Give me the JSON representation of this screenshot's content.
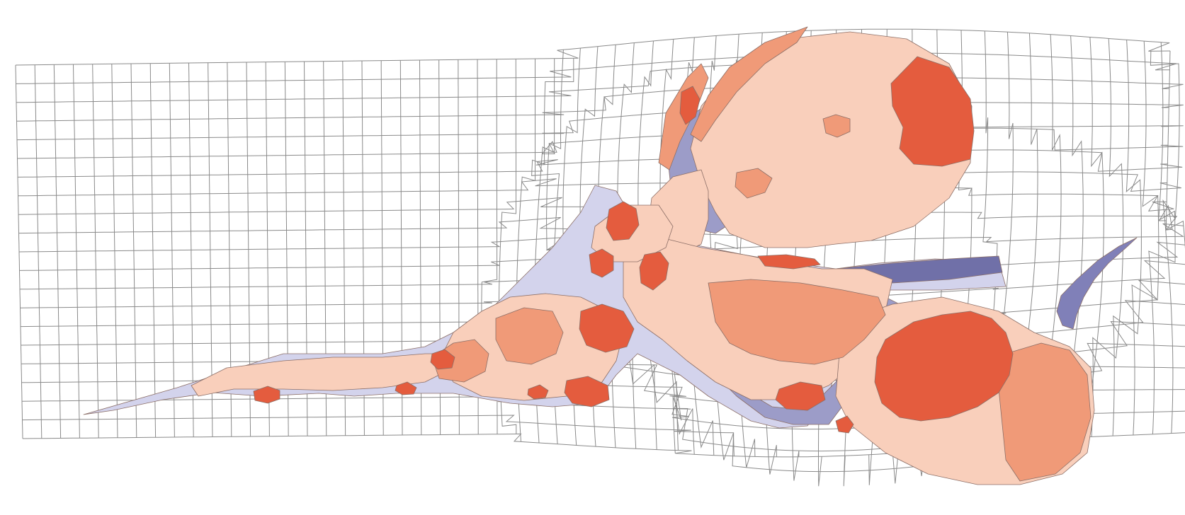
{
  "map": {
    "type": "cartogram",
    "grid": {
      "columns": 60,
      "rows": 20,
      "color": "#8a8a8a",
      "visible": true
    },
    "colors": {
      "background": "#ffffff",
      "lightest": "#f9cfbb",
      "medium": "#f09a78",
      "dark": "#e45c3e",
      "low": "#d3d3ec",
      "lower": "#9c9cc8",
      "lowest": "#7070a8",
      "outline": "#8c6f67"
    },
    "legend": "none"
  }
}
